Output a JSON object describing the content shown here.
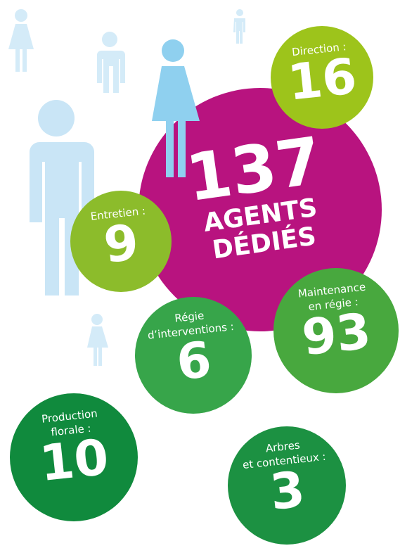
{
  "headline": {
    "number": "137",
    "lines": [
      "AGENTS",
      "DÉDIÉS"
    ]
  },
  "groups": [
    {
      "label": [
        "Direction :"
      ],
      "value": 16
    },
    {
      "label": [
        "Entretien :"
      ],
      "value": 9
    },
    {
      "label": [
        "Maintenance",
        "en régie :"
      ],
      "value": 93
    },
    {
      "label": [
        "Régie",
        "d’interventions :"
      ],
      "value": 6
    },
    {
      "label": [
        "Production",
        "florale :"
      ],
      "value": 10
    },
    {
      "label": [
        "Arbres",
        "et contentieux :"
      ],
      "value": 3
    }
  ]
}
